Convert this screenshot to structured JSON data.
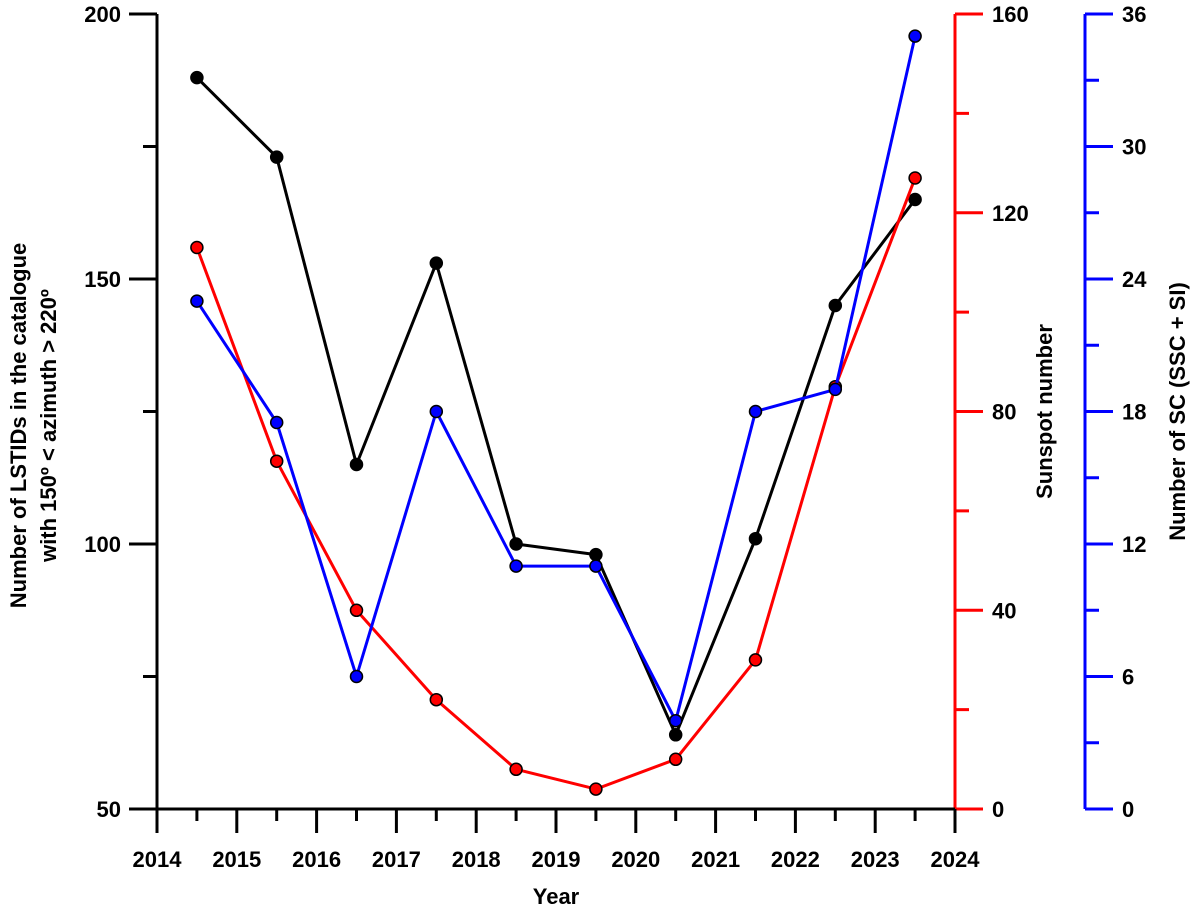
{
  "chart_data": {
    "type": "line",
    "xlabel": "Year",
    "x_ticks": [
      "2014",
      "2015",
      "2016",
      "2017",
      "2018",
      "2019",
      "2020",
      "2021",
      "2022",
      "2023",
      "2024"
    ],
    "xlim": [
      2014,
      2024
    ],
    "x": [
      2014.5,
      2015.5,
      2016.5,
      2017.5,
      2018.5,
      2019.5,
      2020.5,
      2021.5,
      2022.5,
      2023.5
    ],
    "grid": false,
    "legend": "none",
    "axes": {
      "left": {
        "label_line1": "Number of LSTIDs in the catalogue",
        "label_line2": "with 150º < azimuth > 220º",
        "ylim": [
          50,
          200
        ],
        "ticks": [
          "50",
          "100",
          "150",
          "200"
        ],
        "color": "#000000"
      },
      "right1": {
        "label": "Sunspot number",
        "ylim": [
          0,
          160
        ],
        "ticks": [
          "0",
          "40",
          "80",
          "120",
          "160"
        ],
        "color": "#ff0000"
      },
      "right2": {
        "label": "Number of SC (SSC + SI)",
        "ylim": [
          0,
          36
        ],
        "ticks": [
          "0",
          "6",
          "12",
          "18",
          "24",
          "30",
          "36"
        ],
        "color": "#0000ff"
      }
    },
    "series": [
      {
        "axis": "left",
        "color": "#000000",
        "values": [
          188,
          173,
          115,
          153,
          100,
          98,
          64,
          101,
          145,
          165
        ]
      },
      {
        "axis": "right1",
        "color": "#ff0000",
        "values": [
          113,
          70,
          40,
          22,
          8,
          4,
          10,
          30,
          85,
          127
        ]
      },
      {
        "axis": "right2",
        "color": "#0000ff",
        "values": [
          23,
          17.5,
          6,
          18,
          11,
          11,
          4,
          18,
          19,
          35
        ]
      }
    ]
  }
}
